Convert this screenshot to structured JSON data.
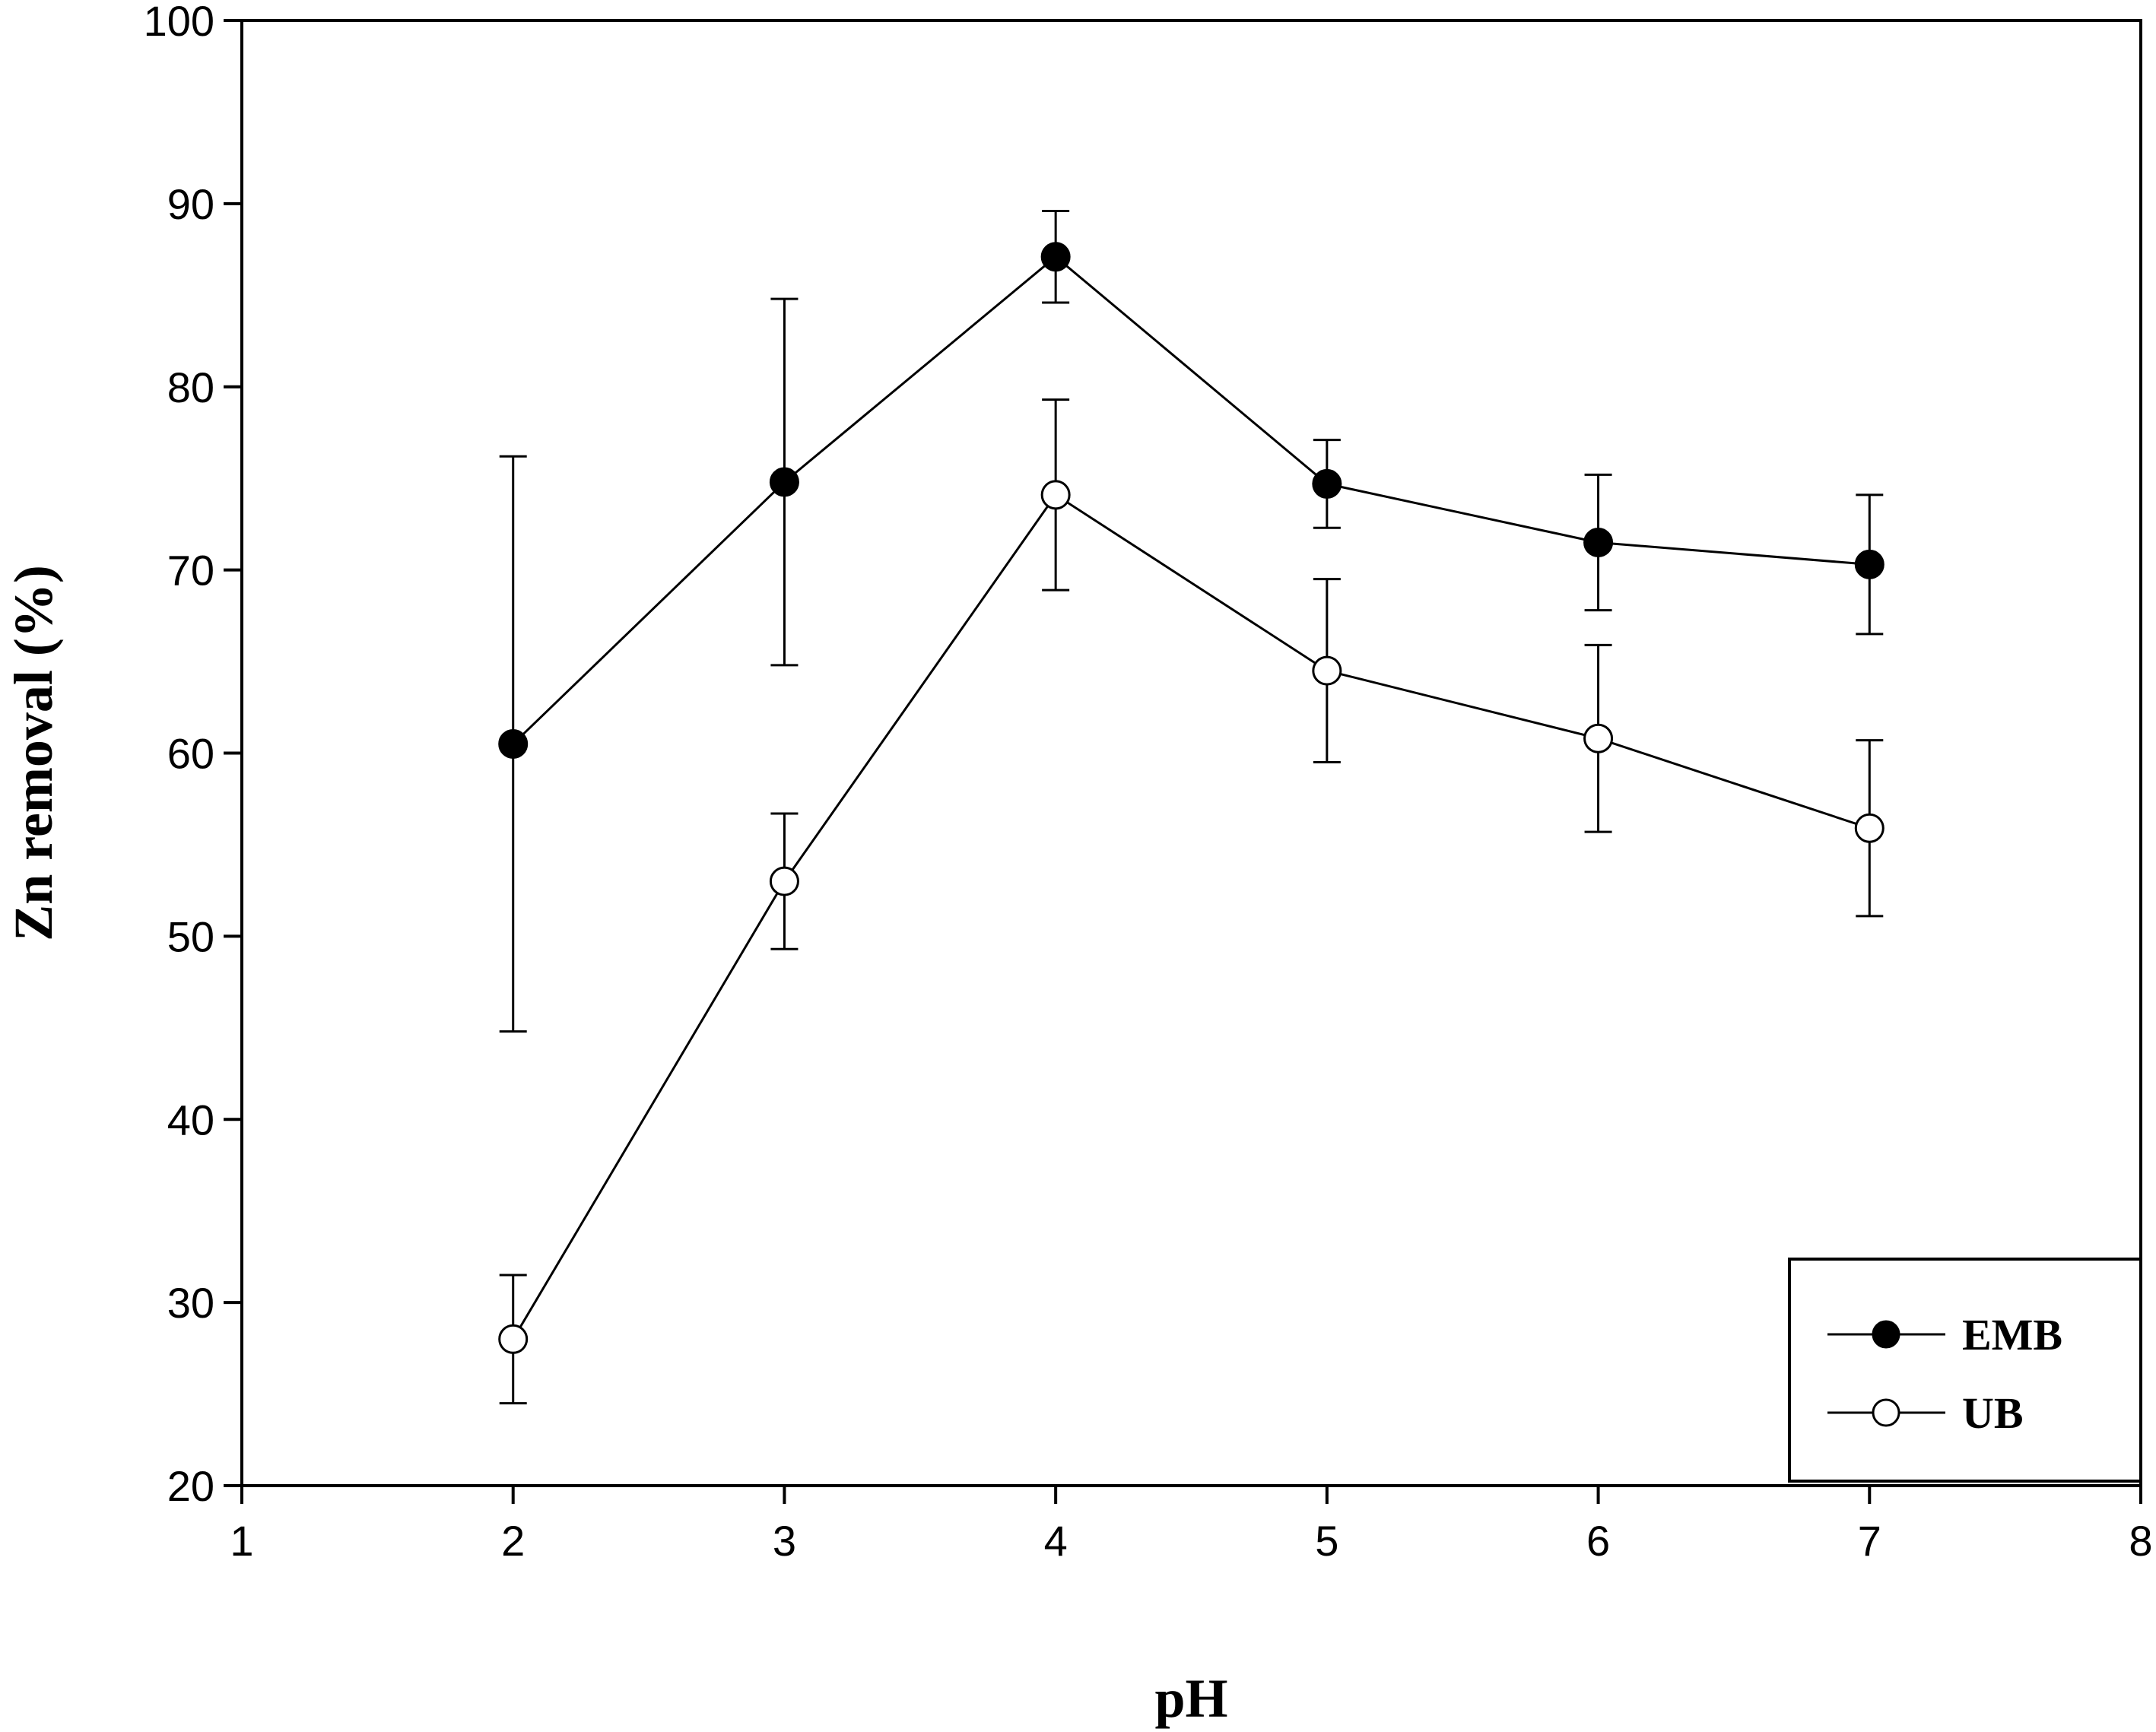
{
  "chart_data": {
    "type": "line",
    "title": "",
    "xlabel": "pH",
    "ylabel": "Zn removal (%)",
    "xlim": [
      1,
      8
    ],
    "ylim": [
      20,
      100
    ],
    "xticks": [
      1,
      2,
      3,
      4,
      5,
      6,
      7,
      8
    ],
    "yticks": [
      20,
      30,
      40,
      50,
      60,
      70,
      80,
      90,
      100
    ],
    "grid": false,
    "legend_position": "bottom-right",
    "x": [
      2,
      3,
      4,
      5,
      6,
      7
    ],
    "series": [
      {
        "name": "EMB",
        "marker": "filled-circle",
        "color": "#000000",
        "values": [
          60.5,
          74.8,
          87.1,
          74.7,
          71.5,
          70.3
        ],
        "error": [
          15.7,
          10.0,
          2.5,
          2.4,
          3.7,
          3.8
        ]
      },
      {
        "name": "UB",
        "marker": "open-circle",
        "color": "#000000",
        "values": [
          28.0,
          53.0,
          74.1,
          64.5,
          60.8,
          55.9
        ],
        "error": [
          3.5,
          3.7,
          5.2,
          5.0,
          5.1,
          4.8
        ]
      }
    ]
  }
}
